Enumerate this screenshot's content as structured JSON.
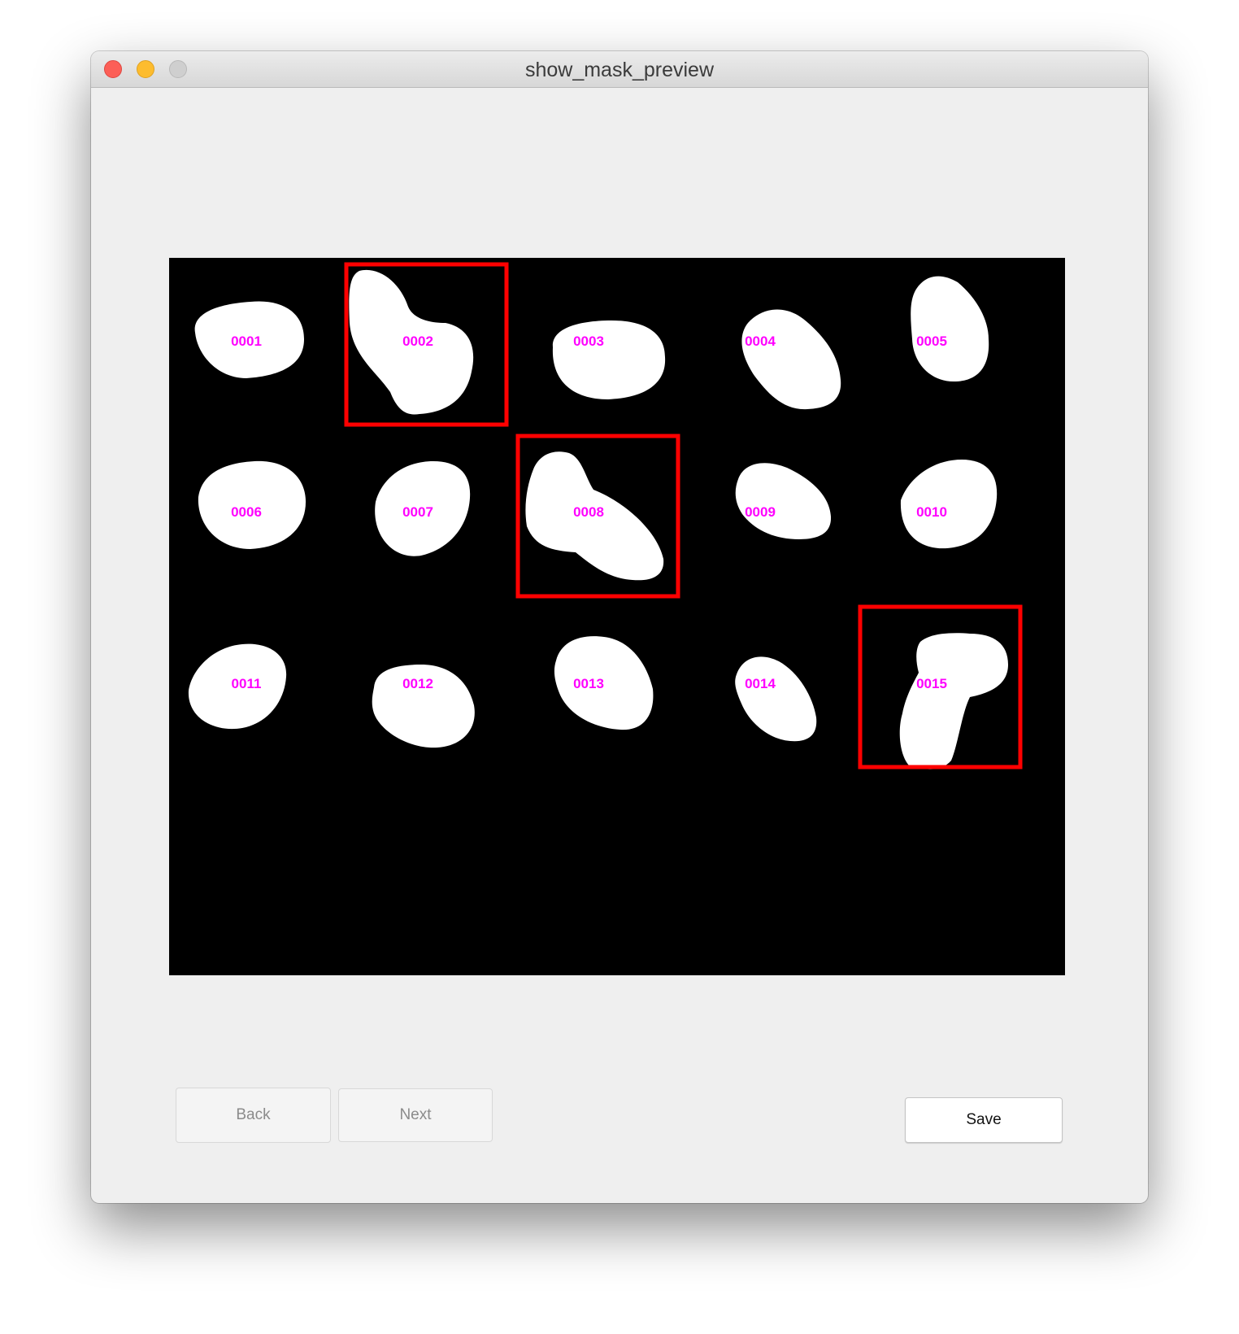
{
  "window": {
    "title": "show_mask_preview"
  },
  "preview": {
    "background_color": "#000000",
    "mask_color": "#ffffff",
    "label_color": "#ff00ff",
    "highlight_color": "#ff0000",
    "objects": [
      {
        "id": "0001",
        "highlighted": false
      },
      {
        "id": "0002",
        "highlighted": true
      },
      {
        "id": "0003",
        "highlighted": false
      },
      {
        "id": "0004",
        "highlighted": false
      },
      {
        "id": "0005",
        "highlighted": false
      },
      {
        "id": "0006",
        "highlighted": false
      },
      {
        "id": "0007",
        "highlighted": false
      },
      {
        "id": "0008",
        "highlighted": true
      },
      {
        "id": "0009",
        "highlighted": false
      },
      {
        "id": "0010",
        "highlighted": false
      },
      {
        "id": "0011",
        "highlighted": false
      },
      {
        "id": "0012",
        "highlighted": false
      },
      {
        "id": "0013",
        "highlighted": false
      },
      {
        "id": "0014",
        "highlighted": false
      },
      {
        "id": "0015",
        "highlighted": true
      }
    ]
  },
  "buttons": {
    "back": {
      "label": "Back",
      "enabled": false
    },
    "next": {
      "label": "Next",
      "enabled": false
    },
    "save": {
      "label": "Save",
      "enabled": true
    }
  }
}
